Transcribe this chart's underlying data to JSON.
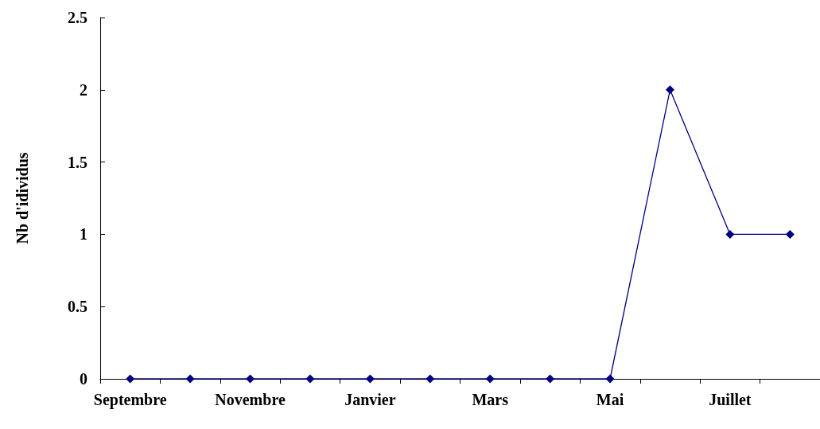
{
  "chart_data": {
    "type": "line",
    "ylabel": "Nb d'idividus",
    "categories": [
      "Septembre",
      null,
      "Novembre",
      null,
      "Janvier",
      null,
      "Mars",
      null,
      "Mai",
      null,
      "Juillet",
      null
    ],
    "series": [
      {
        "color": "#000080",
        "values": [
          0,
          0,
          0,
          0,
          0,
          0,
          0,
          0,
          0,
          2,
          1,
          1
        ]
      }
    ],
    "ylim": [
      0,
      2.5
    ],
    "yticks": [
      0,
      0.5,
      1,
      1.5,
      2,
      2.5
    ],
    "marker": "diamond",
    "grid": false
  }
}
